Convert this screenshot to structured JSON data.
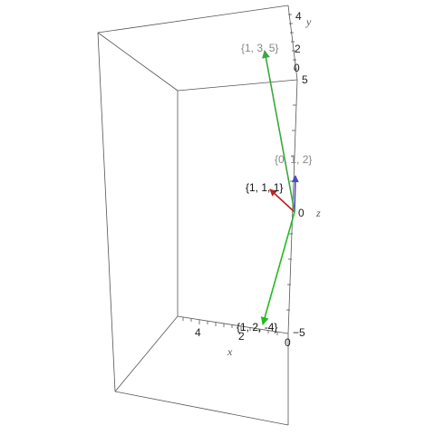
{
  "axes": {
    "x_name": "x",
    "y_name": "y",
    "z_name": "z",
    "x_ticks": [
      "4",
      "2",
      "0"
    ],
    "y_ticks": [
      "4",
      "2",
      "0"
    ],
    "z_ticks": [
      "5",
      "0",
      "−5"
    ]
  },
  "vectors": [
    {
      "label": "{1, 1, 1}",
      "color": "#c0201e",
      "label_color": "#111111"
    },
    {
      "label": "{0, 1, 2}",
      "color": "#4b4bc0",
      "label_color": "#888888"
    },
    {
      "label": "{1, 3, 5}",
      "color": "#3aa83a",
      "label_color": "#888888"
    },
    {
      "label": "{1, 2, -4}",
      "color": "#22bb22",
      "label_color": "#111111"
    }
  ]
}
